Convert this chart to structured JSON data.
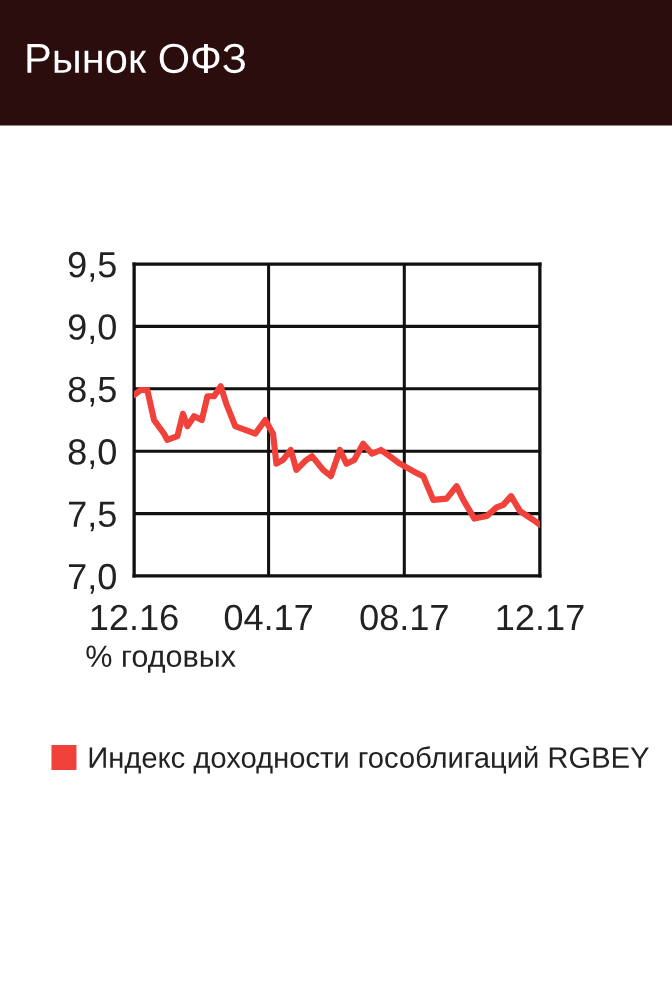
{
  "chart_data": {
    "type": "line",
    "title": "Рынок ОФЗ",
    "ylabel": "% годовых",
    "x": [
      "2016-12-01",
      "2016-12-07",
      "2016-12-13",
      "2016-12-19",
      "2016-12-28",
      "2016-12-31",
      "2017-01-09",
      "2017-01-14",
      "2017-01-18",
      "2017-01-24",
      "2017-01-31",
      "2017-02-05",
      "2017-02-11",
      "2017-02-17",
      "2017-02-22",
      "2017-03-02",
      "2017-03-11",
      "2017-03-20",
      "2017-03-29",
      "2017-04-05",
      "2017-04-08",
      "2017-04-14",
      "2017-04-21",
      "2017-04-26",
      "2017-05-05",
      "2017-05-10",
      "2017-05-20",
      "2017-05-27",
      "2017-06-04",
      "2017-06-10",
      "2017-06-17",
      "2017-06-25",
      "2017-07-03",
      "2017-07-11",
      "2017-07-19",
      "2017-07-28",
      "2017-08-09",
      "2017-08-18",
      "2017-08-27",
      "2017-09-08",
      "2017-09-17",
      "2017-09-23",
      "2017-10-03",
      "2017-10-14",
      "2017-10-23",
      "2017-10-29",
      "2017-11-05",
      "2017-11-13",
      "2017-11-25",
      "2017-12-01"
    ],
    "series": [
      {
        "name": "Индекс доходности гособлигаций RGBEY",
        "color": "#f0413a",
        "values": [
          8.45,
          8.49,
          8.49,
          8.25,
          8.14,
          8.09,
          8.12,
          8.3,
          8.2,
          8.28,
          8.25,
          8.44,
          8.44,
          8.52,
          8.38,
          8.2,
          8.17,
          8.14,
          8.25,
          8.14,
          7.9,
          7.93,
          8.01,
          7.85,
          7.93,
          7.96,
          7.85,
          7.8,
          8.01,
          7.9,
          7.93,
          8.06,
          7.98,
          8.01,
          7.96,
          7.9,
          7.84,
          7.8,
          7.61,
          7.62,
          7.72,
          7.61,
          7.46,
          7.48,
          7.55,
          7.57,
          7.64,
          7.52,
          7.45,
          7.41
        ]
      }
    ],
    "xlim": [
      "2016-12-01",
      "2017-12-01"
    ],
    "xticks": [
      {
        "value": "2016-12-01",
        "label": "12.16"
      },
      {
        "value": "2017-04-01",
        "label": "04.17"
      },
      {
        "value": "2017-08-01",
        "label": "08.17"
      },
      {
        "value": "2017-12-01",
        "label": "12.17"
      }
    ],
    "ylim": [
      7.0,
      9.5
    ],
    "yticks": [
      {
        "value": 7.0,
        "label": "7,0"
      },
      {
        "value": 7.5,
        "label": "7,5"
      },
      {
        "value": 8.0,
        "label": "8,0"
      },
      {
        "value": 8.5,
        "label": "8,5"
      },
      {
        "value": 9.0,
        "label": "9,0"
      },
      {
        "value": 9.5,
        "label": "9,5"
      }
    ],
    "grid": true,
    "legend": "bottom",
    "marker": "none",
    "line_style": "solid"
  }
}
